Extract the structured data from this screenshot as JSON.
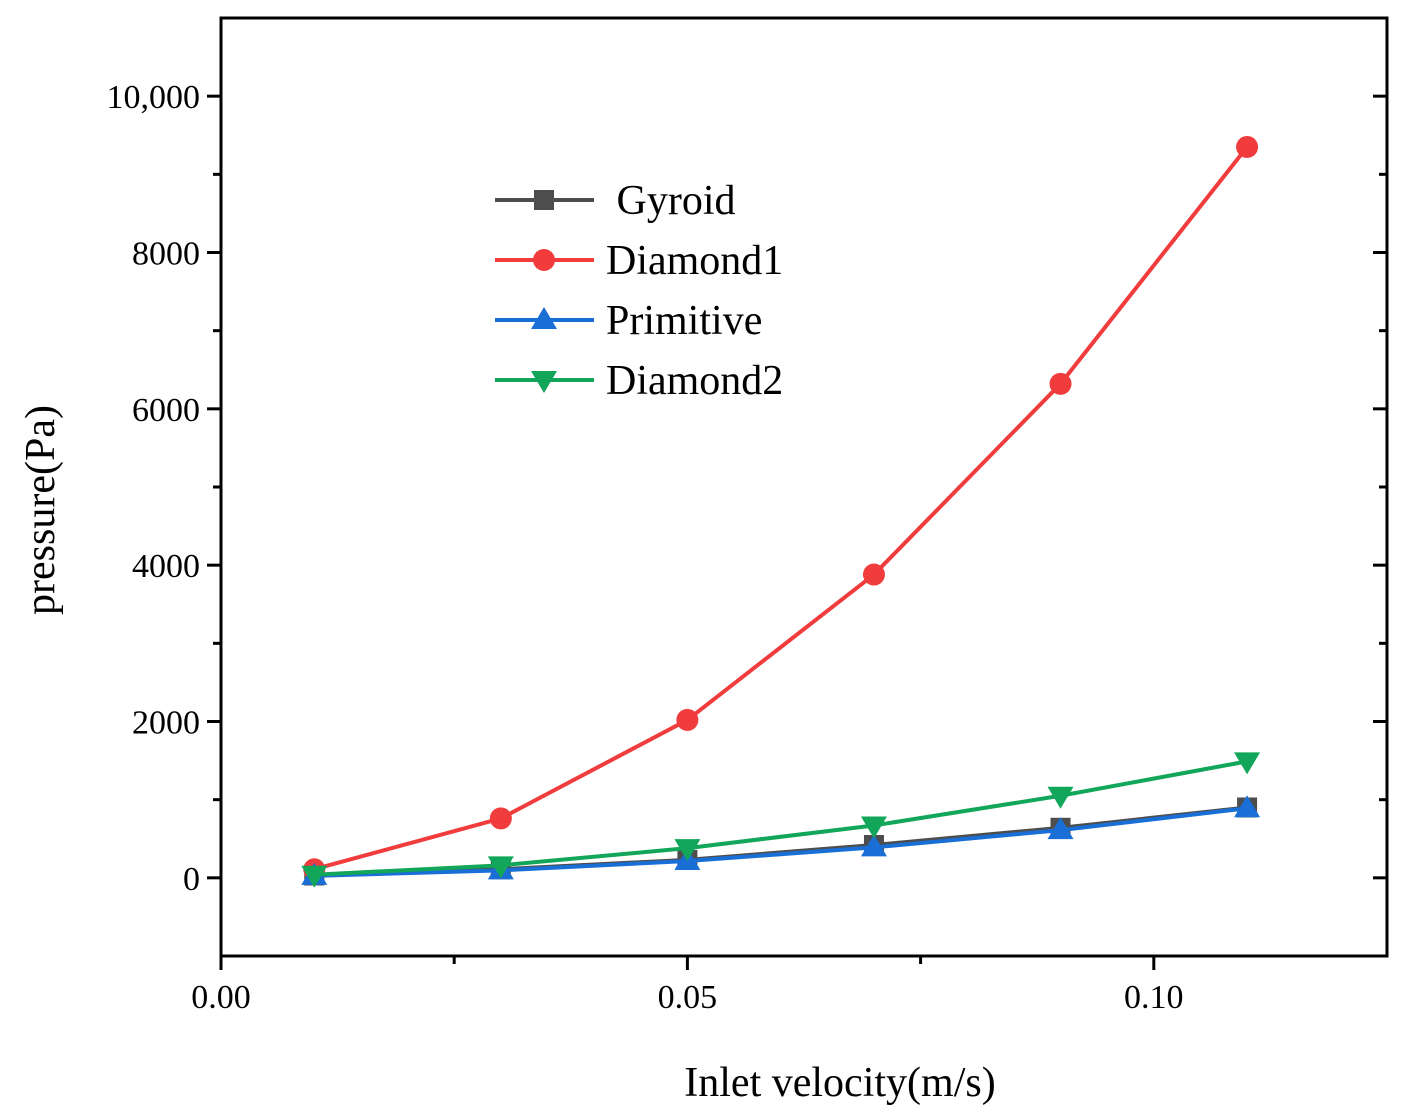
{
  "chart_data": {
    "type": "line",
    "title": "",
    "xlabel": "Inlet velocity(m/s)",
    "ylabel": "pressure(Pa)",
    "xlim": [
      0.0,
      0.125
    ],
    "ylim": [
      -1000,
      11000
    ],
    "x_ticks": [
      {
        "value": 0.0,
        "label": "0.00"
      },
      {
        "value": 0.05,
        "label": "0.05"
      },
      {
        "value": 0.1,
        "label": "0.10"
      }
    ],
    "x_minor_ticks": [
      0.025,
      0.075
    ],
    "y_ticks": [
      {
        "value": 0,
        "label": "0"
      },
      {
        "value": 2000,
        "label": "2000"
      },
      {
        "value": 4000,
        "label": "4000"
      },
      {
        "value": 6000,
        "label": "6000"
      },
      {
        "value": 8000,
        "label": "8000"
      },
      {
        "value": 10000,
        "label": "10,000"
      }
    ],
    "y_minor_ticks": [
      1000,
      3000,
      5000,
      7000,
      9000
    ],
    "grid": false,
    "legend_position": "top-left",
    "x": [
      0.01,
      0.03,
      0.05,
      0.07,
      0.09,
      0.11
    ],
    "series": [
      {
        "name": " Gyroid",
        "marker": "square",
        "color": "#4d4d4d",
        "values": [
          30,
          110,
          230,
          420,
          640,
          900
        ]
      },
      {
        "name": "Diamond1",
        "marker": "circle",
        "color": "#f03c3c",
        "values": [
          110,
          760,
          2020,
          3880,
          6320,
          9350
        ]
      },
      {
        "name": "Primitive",
        "marker": "triangle-up",
        "color": "#1a6fd6",
        "values": [
          25,
          95,
          215,
          390,
          610,
          890
        ]
      },
      {
        "name": "Diamond2",
        "marker": "triangle-down",
        "color": "#12a65a",
        "values": [
          40,
          160,
          380,
          670,
          1050,
          1490
        ]
      }
    ]
  }
}
